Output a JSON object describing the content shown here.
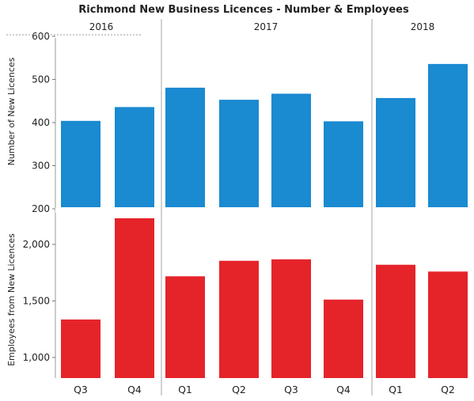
{
  "chart_data": {
    "type": "bar",
    "title": "Richmond New Business Licences - Number & Employees",
    "years": [
      {
        "label": "2016",
        "quarters": 2
      },
      {
        "label": "2017",
        "quarters": 4
      },
      {
        "label": "2018",
        "quarters": 2
      }
    ],
    "categories": [
      "Q3",
      "Q4",
      "Q1",
      "Q2",
      "Q3",
      "Q4",
      "Q1",
      "Q2"
    ],
    "panels": [
      {
        "ylabel": "Number of New Licences",
        "ylim": [
          200,
          600
        ],
        "ticks": [
          200,
          300,
          400,
          500,
          600
        ],
        "tick_labels": [
          "200",
          "300",
          "400",
          "500",
          "600"
        ],
        "color": "#1a8ad1",
        "values": [
          404,
          436,
          481,
          453,
          467,
          403,
          457,
          536
        ]
      },
      {
        "ylabel": "Employees from New Licences",
        "ylim": [
          850,
          2300
        ],
        "ticks": [
          1000,
          1500,
          2000
        ],
        "tick_labels": [
          "1,000",
          "1,500",
          "2,000"
        ],
        "color": "#e5242a",
        "values": [
          1336,
          2231,
          1718,
          1855,
          1868,
          1512,
          1820,
          1760
        ]
      }
    ]
  }
}
